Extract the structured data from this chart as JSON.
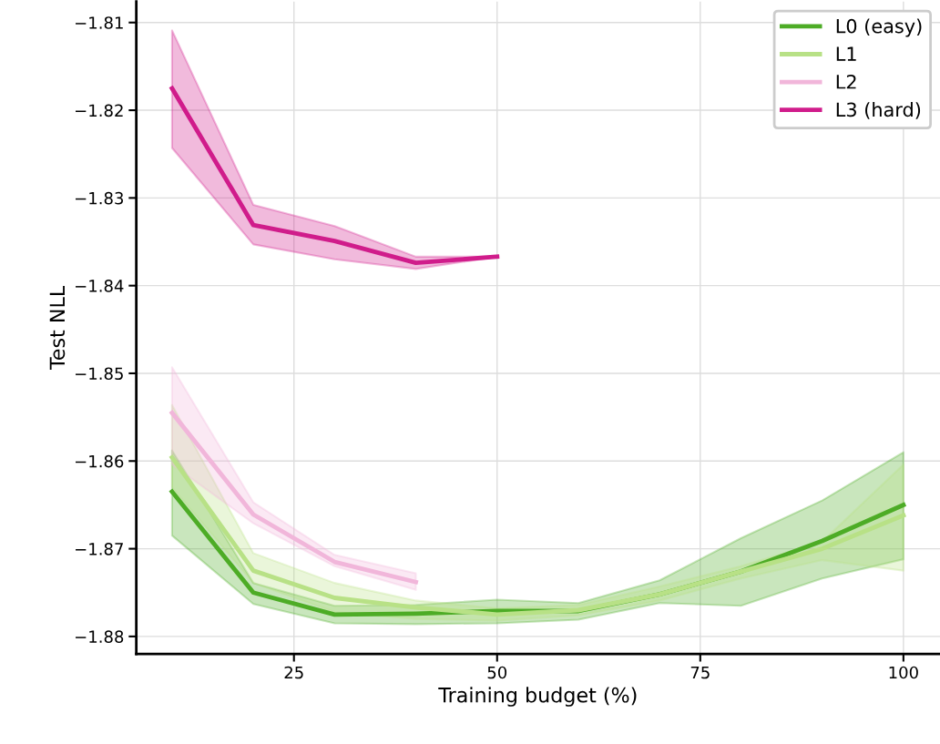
{
  "chart_data": {
    "type": "line",
    "xlabel": "Training budget (%)",
    "ylabel": "Test NLL",
    "xlim": [
      5.6,
      104.5
    ],
    "ylim": [
      -1.882,
      -1.8076
    ],
    "xticks": [
      25,
      50,
      75,
      100
    ],
    "yticks": [
      {
        "value": -1.81,
        "label": "−1.81"
      },
      {
        "value": -1.82,
        "label": "−1.82"
      },
      {
        "value": -1.83,
        "label": "−1.83"
      },
      {
        "value": -1.84,
        "label": "−1.84"
      },
      {
        "value": -1.85,
        "label": "−1.85"
      },
      {
        "value": -1.86,
        "label": "−1.86"
      },
      {
        "value": -1.87,
        "label": "−1.87"
      },
      {
        "value": -1.88,
        "label": "−1.88"
      }
    ],
    "grid": true,
    "legend": "top right",
    "marker": "none",
    "line_style": "solid",
    "series": [
      {
        "name": "L0 (easy)",
        "color": "#4dac26",
        "x": [
          10,
          20,
          30,
          40,
          50,
          60,
          70,
          80,
          90,
          100
        ],
        "values": [
          -1.8635,
          -1.875,
          -1.8775,
          -1.8774,
          -1.8771,
          -1.8771,
          -1.8752,
          -1.8726,
          -1.8691,
          -1.865
        ],
        "upper": [
          -1.8588,
          -1.8739,
          -1.8765,
          -1.8764,
          -1.8758,
          -1.8762,
          -1.8736,
          -1.8688,
          -1.8645,
          -1.859
        ],
        "lower": [
          -1.8685,
          -1.8763,
          -1.8785,
          -1.8786,
          -1.8785,
          -1.8781,
          -1.8762,
          -1.8765,
          -1.8734,
          -1.8712
        ]
      },
      {
        "name": "L1",
        "color": "#b8e186",
        "x": [
          10,
          20,
          30,
          40,
          50,
          60,
          70,
          80,
          90,
          100
        ],
        "values": [
          -1.8596,
          -1.8725,
          -1.8756,
          -1.8767,
          -1.8775,
          -1.877,
          -1.8752,
          -1.8726,
          -1.87,
          -1.8662
        ],
        "upper": [
          -1.8536,
          -1.8705,
          -1.8739,
          -1.8759,
          -1.8768,
          -1.8764,
          -1.8743,
          -1.872,
          -1.8692,
          -1.8604
        ],
        "lower": [
          -1.863,
          -1.8739,
          -1.8772,
          -1.878,
          -1.8782,
          -1.8776,
          -1.8759,
          -1.8734,
          -1.8713,
          -1.8725
        ]
      },
      {
        "name": "L2",
        "color": "#f1b6da",
        "x": [
          10,
          20,
          30,
          40
        ],
        "values": [
          -1.8545,
          -1.8661,
          -1.8715,
          -1.8738
        ],
        "upper": [
          -1.8493,
          -1.8647,
          -1.8707,
          -1.8728
        ],
        "lower": [
          -1.8604,
          -1.8671,
          -1.872,
          -1.8747
        ]
      },
      {
        "name": "L3 (hard)",
        "color": "#d01c8b",
        "x": [
          10,
          20,
          30,
          40,
          50
        ],
        "values": [
          -1.8175,
          -1.8331,
          -1.8349,
          -1.8374,
          -1.8367
        ],
        "upper": [
          -1.8109,
          -1.8308,
          -1.8332,
          -1.8367,
          -1.8367
        ],
        "lower": [
          -1.8243,
          -1.8353,
          -1.837,
          -1.8381,
          -1.8367
        ]
      }
    ]
  }
}
